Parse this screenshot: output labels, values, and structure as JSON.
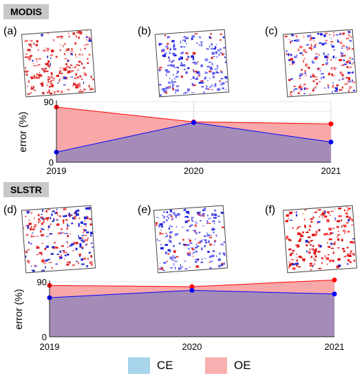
{
  "sections": [
    {
      "tag": "MODIS",
      "panels": [
        {
          "label": "(a)",
          "map_icon": "error-map-oe-dominant"
        },
        {
          "label": "(b)",
          "map_icon": "error-map-ce-dominant"
        },
        {
          "label": "(c)",
          "map_icon": "error-map-mixed"
        }
      ]
    },
    {
      "tag": "SLSTR",
      "panels": [
        {
          "label": "(d)",
          "map_icon": "error-map-mixed"
        },
        {
          "label": "(e)",
          "map_icon": "error-map-ce-dominant"
        },
        {
          "label": "(f)",
          "map_icon": "error-map-oe-dominant"
        }
      ]
    }
  ],
  "chart_data": [
    {
      "type": "area",
      "ylabel": "error (%)",
      "ylim": [
        0,
        90
      ],
      "y_ticks": [
        "90",
        "0"
      ],
      "categories": [
        "2019",
        "2020",
        "2021"
      ],
      "grid": true,
      "series": [
        {
          "name": "OE",
          "values": [
            82,
            60,
            57
          ],
          "color": "#ff0000",
          "fill": "#f8a8a8"
        },
        {
          "name": "CE",
          "values": [
            15,
            59,
            30
          ],
          "color": "#0000ff",
          "fill": "#a58cb8"
        }
      ]
    },
    {
      "type": "area",
      "ylabel": "error (%)",
      "ylim": [
        0,
        90
      ],
      "y_ticks": [
        "90",
        "0"
      ],
      "categories": [
        "2019",
        "2020",
        "2021"
      ],
      "grid": true,
      "series": [
        {
          "name": "OE",
          "values": [
            84,
            82,
            93
          ],
          "color": "#ff0000",
          "fill": "#f8a8a8"
        },
        {
          "name": "CE",
          "values": [
            64,
            76,
            70
          ],
          "color": "#0000ff",
          "fill": "#a58cb8"
        }
      ]
    }
  ],
  "legend": [
    {
      "label": "CE",
      "color": "#a8d4ec"
    },
    {
      "label": "OE",
      "color": "#f8b0b0"
    }
  ]
}
